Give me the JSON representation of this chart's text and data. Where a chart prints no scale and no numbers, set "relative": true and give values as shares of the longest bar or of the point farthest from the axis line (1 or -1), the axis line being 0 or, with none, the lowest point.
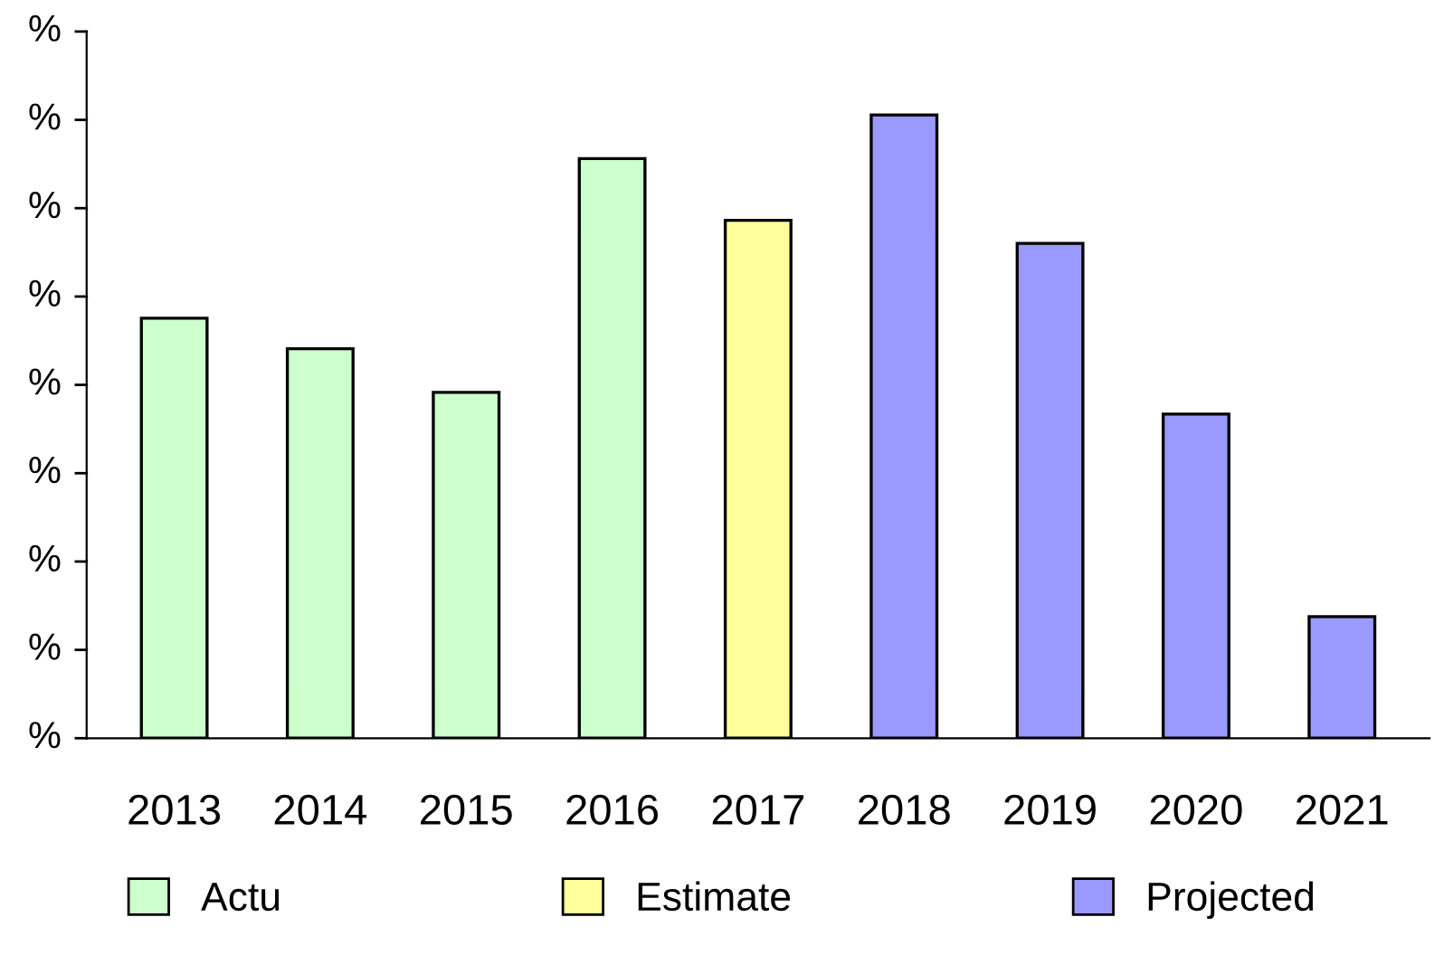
{
  "chart_data": {
    "type": "bar",
    "relative": true,
    "categories": [
      "2013",
      "2014",
      "2015",
      "2016",
      "2017",
      "2018",
      "2019",
      "2020",
      "2021"
    ],
    "series": [
      {
        "name": "Actu",
        "color": "#ccffcc",
        "values": [
          0.674,
          0.625,
          0.555,
          0.93,
          null,
          null,
          null,
          null,
          null
        ]
      },
      {
        "name": "Estimate",
        "color": "#ffff99",
        "values": [
          null,
          null,
          null,
          null,
          0.831,
          null,
          null,
          null,
          null
        ]
      },
      {
        "name": "Projected",
        "color": "#9999ff",
        "values": [
          null,
          null,
          null,
          null,
          null,
          1,
          0.794,
          0.52,
          0.195
        ]
      }
    ],
    "annotations": [
      "%",
      "%",
      "%",
      "%",
      "%",
      "%",
      "%",
      "%",
      "%"
    ],
    "grid": false,
    "legend": "bottom"
  }
}
